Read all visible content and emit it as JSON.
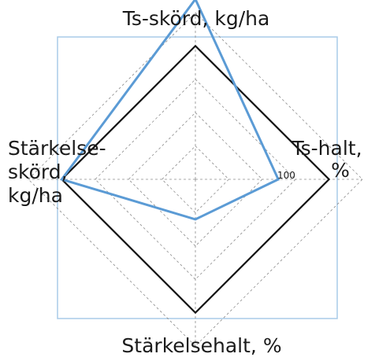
{
  "chart_data": {
    "type": "radar",
    "axes": [
      {
        "key": "top",
        "label_lines": [
          "Ts-skörd, kg/ha"
        ]
      },
      {
        "key": "right",
        "label_lines": [
          "Ts-halt,",
          "%"
        ]
      },
      {
        "key": "bottom",
        "label_lines": [
          "Stärkelsehalt, %"
        ]
      },
      {
        "key": "left",
        "label_lines": [
          "Stärkelse-",
          "skörd,",
          "kg/ha"
        ]
      }
    ],
    "scale": {
      "min": 0,
      "max": 125,
      "rings": [
        25,
        50,
        75,
        100,
        125
      ],
      "labeled_tick": "100"
    },
    "grid": true,
    "series": [
      {
        "values": [
          100,
          100,
          100,
          100
        ],
        "color": "#111111"
      },
      {
        "values": [
          135,
          62,
          30,
          100
        ],
        "color": "#5b9bd5"
      }
    ],
    "frame_color": "#a9cbe8"
  }
}
